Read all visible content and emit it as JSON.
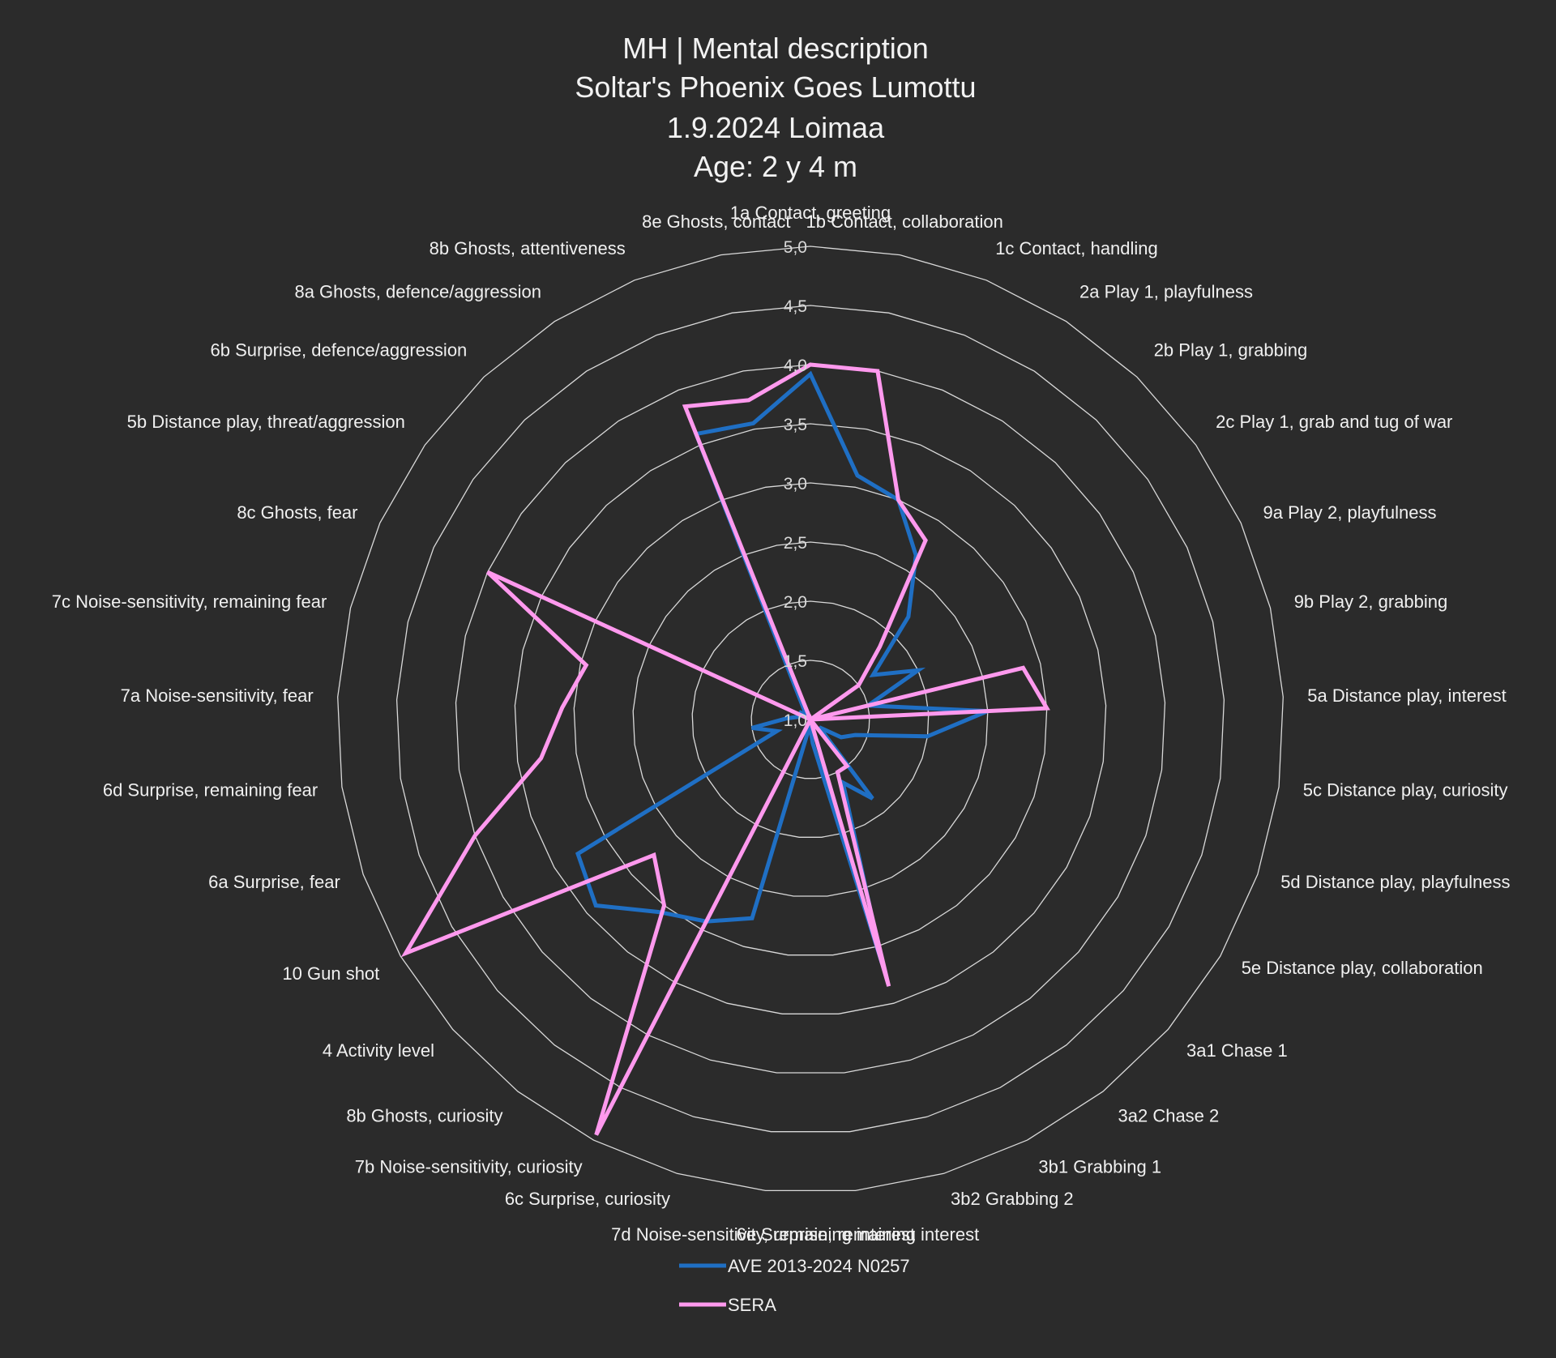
{
  "chart_data": {
    "type": "radar",
    "title_lines": [
      "MH | Mental description",
      "Soltar's Phoenix Goes Lumottu",
      "1.9.2024 Loimaa",
      "Age: 2 y 4 m"
    ],
    "rlim": [
      1.0,
      5.0
    ],
    "ticks": [
      "1,0",
      "1,5",
      "2,0",
      "2,5",
      "3,0",
      "3,5",
      "4,0",
      "4,5",
      "5,0"
    ],
    "tick_values": [
      1.0,
      1.5,
      2.0,
      2.5,
      3.0,
      3.5,
      4.0,
      4.5,
      5.0
    ],
    "grid": true,
    "legend_position": "bottom",
    "categories": [
      "1a Contact, greeting",
      "1b Contact, collaboration",
      "1c Contact, handling",
      "2a Play 1, playfulness",
      "2b Play 1, grabbing",
      "2c Play 1, grab and tug of war",
      "9a Play 2, playfulness",
      "9b Play 2, grabbing",
      "5a Distance play, interest",
      "5c Distance play, curiosity",
      "5d Distance play, playfulness",
      "5e Distance play, collaboration",
      "3a1 Chase 1",
      "3a2 Chase 2",
      "3b1 Grabbing 1",
      "3b2 Grabbing 2",
      "6e Surprise, remaining interest",
      "7d Noise-sensitivity, remaining interest",
      "6c Surprise, curiosity",
      "7b Noise-sensitivity, curiosity",
      "8b Ghosts, curiosity",
      "4 Activity level",
      "10 Gun shot",
      "6a Surprise, fear",
      "6d Surprise, remaining fear",
      "7a Noise-sensitivity, fear",
      "7c Noise-sensitivity, remaining fear",
      "8c Ghosts, fear",
      "5b Distance play, threat/aggression",
      "6b Surprise, defence/aggression",
      "8a Ghosts, defence/aggression",
      "8b Ghosts, attentiveness",
      "8e Ghosts, contact"
    ],
    "series": [
      {
        "name": "AVE 2013-2024 N0257",
        "color": "#1f6fc4",
        "values": [
          3.92,
          3.1,
          3.0,
          2.65,
          2.2,
          1.65,
          2.0,
          1.5,
          2.5,
          2.0,
          1.4,
          1.3,
          1.1,
          1.85,
          1.6,
          3.15,
          1.2,
          1.05,
          2.75,
          2.92,
          3.07,
          3.4,
          3.27,
          1.3,
          1.5,
          1.2,
          1.1,
          1.1,
          1.1,
          1.05,
          1.1,
          3.6,
          3.55
        ]
      },
      {
        "name": "SERA",
        "color": "#ff99ee",
        "values": [
          4.0,
          4.0,
          3.0,
          2.8,
          1.85,
          1.5,
          1.0,
          2.85,
          3.0,
          1.0,
          1.0,
          1.0,
          1.0,
          1.5,
          1.5,
          3.35,
          1.0,
          1.0,
          1.0,
          4.95,
          3.0,
          2.75,
          4.95,
          4.0,
          3.3,
          3.1,
          2.95,
          4.0,
          1.0,
          1.0,
          1.0,
          3.85,
          3.75
        ]
      }
    ]
  }
}
